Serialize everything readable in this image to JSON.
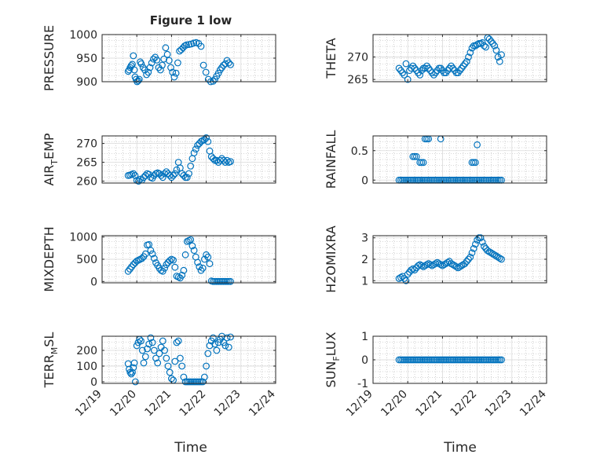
{
  "figure": {
    "title": "Figure 1 low",
    "xlabel": "Time"
  },
  "colors": {
    "marker": "#0072BD",
    "axis": "#262626",
    "grid": "#b0b0b0"
  },
  "chart_data": [
    {
      "type": "scatter",
      "ylabel": "PRESSURE",
      "xlim": [
        0,
        5
      ],
      "ylim": [
        900,
        1000
      ],
      "yticks": [
        900,
        950,
        1000
      ],
      "grid": true,
      "x": [
        0.75,
        0.78,
        0.81,
        0.84,
        0.87,
        0.9,
        0.93,
        0.95,
        0.98,
        1.01,
        1.04,
        1.07,
        1.1,
        1.13,
        1.18,
        1.23,
        1.28,
        1.33,
        1.38,
        1.43,
        1.48,
        1.53,
        1.58,
        1.63,
        1.68,
        1.73,
        1.78,
        1.83,
        1.88,
        1.93,
        1.98,
        2.03,
        2.08,
        2.13,
        2.18,
        2.23,
        2.28,
        2.33,
        2.38,
        2.43,
        2.5,
        2.57,
        2.64,
        2.71,
        2.78,
        2.85,
        2.92,
        2.99,
        3.06,
        3.13,
        3.2,
        3.25,
        3.3,
        3.35,
        3.4,
        3.45,
        3.5,
        3.55,
        3.6,
        3.65,
        3.7
      ],
      "y": [
        922,
        925,
        930,
        934,
        937,
        955,
        925,
        910,
        905,
        900,
        902,
        905,
        942,
        938,
        930,
        925,
        915,
        920,
        930,
        940,
        948,
        952,
        946,
        930,
        925,
        935,
        948,
        972,
        958,
        945,
        930,
        920,
        910,
        918,
        940,
        965,
        968,
        972,
        976,
        978,
        979,
        980,
        982,
        983,
        981,
        975,
        935,
        920,
        905,
        900,
        901,
        905,
        912,
        918,
        925,
        930,
        935,
        938,
        945,
        940,
        936
      ]
    },
    {
      "type": "scatter",
      "ylabel": "THETA",
      "xlim": [
        0,
        5
      ],
      "ylim": [
        264.5,
        275
      ],
      "yticks": [
        265,
        270
      ],
      "grid": true,
      "x": [
        0.75,
        0.8,
        0.85,
        0.9,
        0.95,
        1.0,
        1.05,
        1.1,
        1.15,
        1.2,
        1.25,
        1.3,
        1.35,
        1.4,
        1.45,
        1.5,
        1.55,
        1.6,
        1.65,
        1.7,
        1.75,
        1.8,
        1.85,
        1.9,
        1.95,
        2.0,
        2.05,
        2.1,
        2.15,
        2.2,
        2.25,
        2.3,
        2.35,
        2.4,
        2.45,
        2.5,
        2.55,
        2.6,
        2.65,
        2.7,
        2.75,
        2.8,
        2.85,
        2.9,
        2.95,
        3.0,
        3.05,
        3.1,
        3.15,
        3.2,
        3.25,
        3.3,
        3.35,
        3.4,
        3.45,
        3.5,
        3.55,
        3.6,
        3.65,
        3.7
      ],
      "y": [
        267.5,
        267.0,
        266.5,
        266.0,
        268.5,
        265.0,
        267.0,
        267.5,
        268.0,
        267.5,
        267.0,
        266.5,
        266.0,
        267.0,
        267.5,
        267.5,
        268.0,
        267.5,
        267.0,
        266.5,
        266.0,
        266.5,
        267.0,
        267.5,
        267.5,
        267.0,
        266.5,
        266.5,
        267.0,
        267.5,
        268.0,
        267.5,
        267.0,
        266.5,
        266.5,
        267.0,
        267.5,
        268.0,
        268.5,
        269.0,
        270.0,
        271.0,
        272.0,
        272.5,
        272.5,
        272.8,
        273.0,
        273.0,
        273.2,
        272.5,
        272.2,
        274.3,
        274.0,
        273.5,
        273.0,
        272.5,
        271.5,
        270.0,
        269.0,
        270.5
      ]
    },
    {
      "type": "scatter",
      "ylabel": "AIR_TEMP",
      "xlim": [
        0,
        5
      ],
      "ylim": [
        259.5,
        272
      ],
      "yticks": [
        260,
        265,
        270
      ],
      "grid": true,
      "x": [
        0.75,
        0.8,
        0.85,
        0.9,
        0.95,
        1.0,
        1.05,
        1.1,
        1.15,
        1.2,
        1.25,
        1.3,
        1.35,
        1.4,
        1.45,
        1.5,
        1.55,
        1.6,
        1.65,
        1.7,
        1.75,
        1.8,
        1.85,
        1.9,
        1.95,
        2.0,
        2.05,
        2.1,
        2.15,
        2.2,
        2.25,
        2.3,
        2.35,
        2.4,
        2.45,
        2.5,
        2.55,
        2.6,
        2.65,
        2.7,
        2.75,
        2.8,
        2.85,
        2.9,
        2.95,
        3.0,
        3.05,
        3.1,
        3.15,
        3.2,
        3.25,
        3.3,
        3.35,
        3.4,
        3.45,
        3.5,
        3.55,
        3.6,
        3.65,
        3.7
      ],
      "y": [
        261.5,
        261.6,
        261.8,
        262.0,
        261.5,
        260.2,
        260.0,
        260.5,
        260.3,
        261.0,
        261.5,
        262.0,
        261.8,
        261.0,
        260.8,
        261.5,
        262.0,
        262.2,
        262.0,
        261.5,
        261.0,
        262.0,
        262.5,
        262.0,
        261.5,
        261.0,
        261.5,
        262.0,
        263.0,
        265.0,
        263.5,
        262.0,
        261.5,
        261.0,
        261.0,
        262.0,
        264.0,
        266.0,
        267.5,
        268.5,
        269.5,
        270.0,
        270.5,
        270.8,
        271.0,
        271.5,
        270.5,
        268.0,
        266.5,
        266.0,
        265.5,
        265.5,
        265.0,
        265.5,
        266.0,
        265.5,
        265.0,
        265.5,
        265.0,
        265.2
      ]
    },
    {
      "type": "scatter",
      "ylabel": "RAINFALL",
      "xlim": [
        0,
        5
      ],
      "ylim": [
        -0.05,
        0.75
      ],
      "yticks": [
        0,
        0.5
      ],
      "grid": true,
      "x": [
        0.75,
        0.8,
        0.85,
        0.9,
        0.95,
        1.0,
        1.05,
        1.1,
        1.15,
        1.2,
        1.25,
        1.3,
        1.35,
        1.4,
        1.45,
        1.5,
        1.55,
        1.6,
        1.65,
        1.7,
        1.75,
        1.8,
        1.85,
        1.9,
        1.95,
        2.0,
        2.05,
        2.1,
        2.15,
        2.2,
        2.25,
        2.3,
        2.35,
        2.4,
        2.45,
        2.5,
        2.55,
        2.6,
        2.65,
        2.7,
        2.75,
        2.8,
        2.85,
        2.9,
        2.95,
        3.0,
        3.05,
        3.1,
        3.15,
        3.2,
        3.25,
        3.3,
        3.35,
        3.4,
        3.45,
        3.5,
        3.55,
        3.6,
        3.65,
        3.7,
        1.15,
        1.2,
        1.25,
        1.3,
        1.35,
        1.4,
        1.45,
        1.5,
        1.55,
        1.6,
        1.95,
        2.85,
        2.9,
        2.95,
        3.0
      ],
      "y": [
        0,
        0,
        0,
        0,
        0,
        0,
        0,
        0,
        0,
        0,
        0,
        0,
        0,
        0,
        0,
        0,
        0,
        0,
        0,
        0,
        0,
        0,
        0,
        0,
        0,
        0,
        0,
        0,
        0,
        0,
        0,
        0,
        0,
        0,
        0,
        0,
        0,
        0,
        0,
        0,
        0,
        0,
        0,
        0,
        0,
        0,
        0,
        0,
        0,
        0,
        0,
        0,
        0,
        0,
        0,
        0,
        0,
        0,
        0,
        0,
        0.4,
        0.4,
        0.4,
        0,
        0.3,
        0.3,
        0.3,
        0.7,
        0.7,
        0.7,
        0.7,
        0.3,
        0.3,
        0.3,
        0.6
      ]
    },
    {
      "type": "scatter",
      "ylabel": "MIXDEPTH",
      "xlim": [
        0,
        5
      ],
      "ylim": [
        -30,
        1030
      ],
      "yticks": [
        0,
        500,
        1000
      ],
      "grid": true,
      "x": [
        0.75,
        0.8,
        0.85,
        0.9,
        0.95,
        1.0,
        1.05,
        1.1,
        1.15,
        1.2,
        1.25,
        1.3,
        1.35,
        1.4,
        1.45,
        1.5,
        1.55,
        1.6,
        1.65,
        1.7,
        1.75,
        1.8,
        1.85,
        1.9,
        1.95,
        2.0,
        2.05,
        2.1,
        2.15,
        2.2,
        2.25,
        2.3,
        2.35,
        2.4,
        2.45,
        2.5,
        2.55,
        2.6,
        2.65,
        2.7,
        2.75,
        2.8,
        2.85,
        2.9,
        2.95,
        3.0,
        3.05,
        3.1,
        3.15,
        3.2,
        3.25,
        3.3,
        3.35,
        3.4,
        3.45,
        3.5,
        3.55,
        3.6,
        3.65,
        3.7
      ],
      "y": [
        230,
        280,
        330,
        380,
        420,
        460,
        480,
        500,
        520,
        560,
        620,
        820,
        830,
        700,
        620,
        520,
        420,
        360,
        300,
        250,
        230,
        300,
        380,
        430,
        470,
        500,
        480,
        320,
        120,
        100,
        80,
        140,
        250,
        600,
        900,
        920,
        940,
        800,
        700,
        550,
        430,
        330,
        250,
        300,
        500,
        600,
        550,
        400,
        10,
        0,
        0,
        0,
        0,
        0,
        0,
        0,
        0,
        0,
        0,
        0
      ]
    },
    {
      "type": "scatter",
      "ylabel": "H2OMIXRA",
      "xlim": [
        0,
        5
      ],
      "ylim": [
        0.9,
        3.1
      ],
      "yticks": [
        1,
        2,
        3
      ],
      "grid": true,
      "x": [
        0.75,
        0.8,
        0.85,
        0.9,
        0.95,
        1.0,
        1.05,
        1.1,
        1.15,
        1.2,
        1.25,
        1.3,
        1.35,
        1.4,
        1.45,
        1.5,
        1.55,
        1.6,
        1.65,
        1.7,
        1.75,
        1.8,
        1.85,
        1.9,
        1.95,
        2.0,
        2.05,
        2.1,
        2.15,
        2.2,
        2.25,
        2.3,
        2.35,
        2.4,
        2.45,
        2.5,
        2.55,
        2.6,
        2.65,
        2.7,
        2.75,
        2.8,
        2.85,
        2.9,
        2.95,
        3.0,
        3.05,
        3.1,
        3.15,
        3.2,
        3.25,
        3.3,
        3.35,
        3.4,
        3.45,
        3.5,
        3.55,
        3.6,
        3.65,
        3.7
      ],
      "y": [
        1.1,
        1.15,
        1.2,
        1.1,
        1.0,
        1.3,
        1.4,
        1.5,
        1.55,
        1.5,
        1.6,
        1.7,
        1.75,
        1.7,
        1.65,
        1.7,
        1.75,
        1.8,
        1.75,
        1.7,
        1.75,
        1.8,
        1.85,
        1.8,
        1.75,
        1.7,
        1.75,
        1.8,
        1.85,
        1.9,
        1.8,
        1.75,
        1.7,
        1.65,
        1.6,
        1.65,
        1.7,
        1.75,
        1.8,
        1.9,
        2.0,
        2.1,
        2.3,
        2.5,
        2.7,
        2.9,
        3.0,
        3.0,
        2.8,
        2.6,
        2.5,
        2.4,
        2.35,
        2.3,
        2.25,
        2.2,
        2.15,
        2.1,
        2.05,
        2.0
      ]
    },
    {
      "type": "scatter",
      "ylabel": "TERR_MSL",
      "xlim": [
        0,
        5
      ],
      "ylim": [
        -10,
        290
      ],
      "yticks": [
        0,
        100,
        200
      ],
      "grid": true,
      "x": [
        0.75,
        0.78,
        0.81,
        0.84,
        0.87,
        0.9,
        0.93,
        0.96,
        1.0,
        1.04,
        1.08,
        1.12,
        1.16,
        1.2,
        1.25,
        1.3,
        1.35,
        1.4,
        1.45,
        1.5,
        1.55,
        1.6,
        1.65,
        1.7,
        1.75,
        1.8,
        1.85,
        1.9,
        1.95,
        2.0,
        2.05,
        2.1,
        2.15,
        2.2,
        2.25,
        2.3,
        2.35,
        2.4,
        2.45,
        2.5,
        2.55,
        2.6,
        2.65,
        2.7,
        2.75,
        2.8,
        2.85,
        2.9,
        2.95,
        3.0,
        3.05,
        3.1,
        3.15,
        3.2,
        3.25,
        3.3,
        3.35,
        3.4,
        3.45,
        3.5,
        3.55,
        3.6,
        3.65,
        3.7
      ],
      "y": [
        115,
        80,
        60,
        50,
        60,
        90,
        120,
        0,
        230,
        250,
        270,
        260,
        200,
        120,
        160,
        210,
        240,
        280,
        250,
        200,
        150,
        120,
        180,
        220,
        260,
        200,
        150,
        100,
        60,
        20,
        10,
        130,
        250,
        260,
        150,
        100,
        30,
        0,
        0,
        0,
        0,
        0,
        0,
        0,
        0,
        0,
        0,
        0,
        30,
        100,
        180,
        230,
        260,
        280,
        240,
        200,
        250,
        270,
        290,
        250,
        230,
        280,
        220,
        285
      ]
    },
    {
      "type": "scatter",
      "ylabel": "SUN_FLUX",
      "xlim": [
        0,
        5
      ],
      "ylim": [
        -1,
        1
      ],
      "yticks": [
        -1,
        0,
        1
      ],
      "grid": true,
      "x": [
        0.75,
        0.8,
        0.85,
        0.9,
        0.95,
        1.0,
        1.05,
        1.1,
        1.15,
        1.2,
        1.25,
        1.3,
        1.35,
        1.4,
        1.45,
        1.5,
        1.55,
        1.6,
        1.65,
        1.7,
        1.75,
        1.8,
        1.85,
        1.9,
        1.95,
        2.0,
        2.05,
        2.1,
        2.15,
        2.2,
        2.25,
        2.3,
        2.35,
        2.4,
        2.45,
        2.5,
        2.55,
        2.6,
        2.65,
        2.7,
        2.75,
        2.8,
        2.85,
        2.9,
        2.95,
        3.0,
        3.05,
        3.1,
        3.15,
        3.2,
        3.25,
        3.3,
        3.35,
        3.4,
        3.45,
        3.5,
        3.55,
        3.6,
        3.65,
        3.7
      ],
      "y": [
        0,
        0,
        0,
        0,
        0,
        0,
        0,
        0,
        0,
        0,
        0,
        0,
        0,
        0,
        0,
        0,
        0,
        0,
        0,
        0,
        0,
        0,
        0,
        0,
        0,
        0,
        0,
        0,
        0,
        0,
        0,
        0,
        0,
        0,
        0,
        0,
        0,
        0,
        0,
        0,
        0,
        0,
        0,
        0,
        0,
        0,
        0,
        0,
        0,
        0,
        0,
        0,
        0,
        0,
        0,
        0,
        0,
        0,
        0,
        0
      ]
    }
  ],
  "xticklabels": [
    "12/19",
    "12/20",
    "12/21",
    "12/22",
    "12/23",
    "12/24"
  ]
}
